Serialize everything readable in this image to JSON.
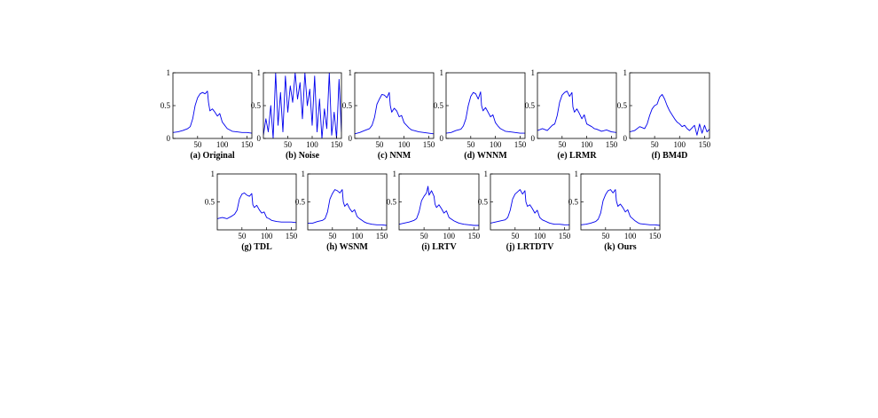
{
  "chart_data": [
    {
      "type": "line",
      "caption": "(a) Original",
      "xlim": [
        0,
        160
      ],
      "ylim": [
        0,
        1
      ],
      "xticks": [
        50,
        100,
        150
      ],
      "yticks": [
        0,
        0.5,
        1
      ],
      "ytick_labels": [
        "0",
        "0.5",
        "1"
      ],
      "series": [
        {
          "x": [
            0,
            10,
            20,
            30,
            35,
            40,
            45,
            50,
            55,
            60,
            65,
            70,
            72,
            75,
            80,
            85,
            90,
            95,
            100,
            105,
            110,
            115,
            120,
            130,
            140,
            150,
            160
          ],
          "y": [
            0.09,
            0.1,
            0.12,
            0.15,
            0.18,
            0.3,
            0.5,
            0.62,
            0.68,
            0.7,
            0.68,
            0.72,
            0.55,
            0.42,
            0.45,
            0.4,
            0.34,
            0.38,
            0.25,
            0.2,
            0.15,
            0.13,
            0.11,
            0.1,
            0.09,
            0.09,
            0.08
          ]
        }
      ]
    },
    {
      "type": "line",
      "caption": "(b) Noise",
      "xlim": [
        0,
        160
      ],
      "ylim": [
        0,
        1
      ],
      "xticks": [
        50,
        100,
        150
      ],
      "yticks": [
        0,
        0.5,
        1
      ],
      "ytick_labels": [
        "0",
        "0.5",
        "1"
      ],
      "series": [
        {
          "x": [
            0,
            5,
            10,
            15,
            20,
            25,
            30,
            35,
            40,
            45,
            50,
            55,
            60,
            65,
            70,
            75,
            80,
            85,
            90,
            95,
            100,
            105,
            110,
            115,
            120,
            125,
            130,
            135,
            140,
            145,
            150,
            155,
            160
          ],
          "y": [
            0.05,
            0.3,
            0.1,
            0.5,
            0.0,
            1.0,
            0.2,
            0.7,
            0.1,
            0.95,
            0.4,
            0.8,
            0.55,
            1.0,
            0.6,
            0.85,
            0.3,
            1.0,
            0.5,
            0.75,
            0.2,
            0.95,
            0.1,
            0.6,
            0.0,
            0.45,
            0.15,
            1.0,
            0.05,
            0.4,
            0.0,
            0.9,
            0.1
          ]
        }
      ]
    },
    {
      "type": "line",
      "caption": "(c) NNM",
      "xlim": [
        0,
        160
      ],
      "ylim": [
        0,
        1
      ],
      "xticks": [
        50,
        100,
        150
      ],
      "yticks": [
        0,
        0.5,
        1
      ],
      "ytick_labels": [
        "0",
        "0.5",
        "1"
      ],
      "series": [
        {
          "x": [
            0,
            10,
            20,
            30,
            35,
            40,
            45,
            50,
            55,
            60,
            65,
            70,
            72,
            75,
            80,
            85,
            90,
            95,
            100,
            105,
            110,
            115,
            120,
            130,
            140,
            150,
            160
          ],
          "y": [
            0.07,
            0.09,
            0.12,
            0.15,
            0.2,
            0.32,
            0.52,
            0.6,
            0.67,
            0.66,
            0.62,
            0.7,
            0.5,
            0.4,
            0.46,
            0.42,
            0.33,
            0.35,
            0.24,
            0.2,
            0.16,
            0.13,
            0.12,
            0.1,
            0.09,
            0.08,
            0.07
          ]
        }
      ]
    },
    {
      "type": "line",
      "caption": "(d) WNNM",
      "xlim": [
        0,
        160
      ],
      "ylim": [
        0,
        1
      ],
      "xticks": [
        50,
        100,
        150
      ],
      "yticks": [
        0,
        0.5,
        1
      ],
      "ytick_labels": [
        "0",
        "0.5",
        "1"
      ],
      "series": [
        {
          "x": [
            0,
            10,
            20,
            30,
            35,
            40,
            45,
            50,
            55,
            60,
            65,
            70,
            72,
            75,
            80,
            85,
            90,
            95,
            100,
            105,
            110,
            115,
            120,
            130,
            140,
            150,
            160
          ],
          "y": [
            0.08,
            0.09,
            0.12,
            0.14,
            0.19,
            0.3,
            0.5,
            0.64,
            0.7,
            0.68,
            0.6,
            0.71,
            0.5,
            0.42,
            0.47,
            0.4,
            0.33,
            0.36,
            0.24,
            0.19,
            0.15,
            0.13,
            0.11,
            0.1,
            0.09,
            0.08,
            0.08
          ]
        }
      ]
    },
    {
      "type": "line",
      "caption": "(e) LRMR",
      "xlim": [
        0,
        160
      ],
      "ylim": [
        0,
        1
      ],
      "xticks": [
        50,
        100,
        150
      ],
      "yticks": [
        0,
        0.5,
        1
      ],
      "ytick_labels": [
        "0",
        "0.5",
        "1"
      ],
      "series": [
        {
          "x": [
            0,
            10,
            20,
            30,
            35,
            40,
            45,
            50,
            55,
            60,
            65,
            70,
            72,
            75,
            80,
            85,
            90,
            95,
            100,
            105,
            110,
            115,
            120,
            130,
            140,
            150,
            160
          ],
          "y": [
            0.12,
            0.15,
            0.12,
            0.2,
            0.22,
            0.35,
            0.55,
            0.66,
            0.7,
            0.72,
            0.64,
            0.7,
            0.48,
            0.4,
            0.45,
            0.38,
            0.3,
            0.36,
            0.22,
            0.2,
            0.18,
            0.15,
            0.14,
            0.11,
            0.13,
            0.1,
            0.09
          ]
        }
      ]
    },
    {
      "type": "line",
      "caption": "(f) BM4D",
      "xlim": [
        0,
        160
      ],
      "ylim": [
        0,
        1
      ],
      "xticks": [
        50,
        100,
        150
      ],
      "yticks": [
        0,
        0.5,
        1
      ],
      "ytick_labels": [
        "0",
        "0.5",
        "1"
      ],
      "series": [
        {
          "x": [
            0,
            10,
            20,
            30,
            35,
            40,
            45,
            50,
            55,
            60,
            65,
            70,
            75,
            80,
            85,
            90,
            95,
            100,
            105,
            110,
            115,
            120,
            130,
            135,
            140,
            145,
            150,
            155,
            160
          ],
          "y": [
            0.1,
            0.12,
            0.18,
            0.15,
            0.22,
            0.35,
            0.45,
            0.5,
            0.52,
            0.63,
            0.67,
            0.6,
            0.5,
            0.42,
            0.36,
            0.3,
            0.25,
            0.22,
            0.18,
            0.2,
            0.15,
            0.12,
            0.2,
            0.05,
            0.22,
            0.08,
            0.2,
            0.1,
            0.14
          ]
        }
      ]
    },
    {
      "type": "line",
      "caption": "(g) TDL",
      "xlim": [
        0,
        160
      ],
      "ylim": [
        0,
        1
      ],
      "xticks": [
        50,
        100,
        150
      ],
      "yticks": [
        0.5,
        1
      ],
      "ytick_labels": [
        "0.5",
        "1"
      ],
      "series": [
        {
          "x": [
            0,
            10,
            20,
            30,
            35,
            40,
            45,
            50,
            55,
            60,
            65,
            70,
            72,
            75,
            80,
            85,
            90,
            95,
            100,
            105,
            110,
            115,
            120,
            130,
            140,
            150,
            160
          ],
          "y": [
            0.2,
            0.22,
            0.2,
            0.25,
            0.28,
            0.35,
            0.55,
            0.64,
            0.66,
            0.62,
            0.6,
            0.65,
            0.45,
            0.4,
            0.44,
            0.36,
            0.3,
            0.32,
            0.22,
            0.2,
            0.17,
            0.16,
            0.15,
            0.14,
            0.14,
            0.14,
            0.13
          ]
        }
      ]
    },
    {
      "type": "line",
      "caption": "(h) WSNM",
      "xlim": [
        0,
        160
      ],
      "ylim": [
        0,
        1
      ],
      "xticks": [
        50,
        100,
        150
      ],
      "yticks": [
        0.5,
        1
      ],
      "ytick_labels": [
        "0.5",
        "1"
      ],
      "series": [
        {
          "x": [
            0,
            10,
            20,
            30,
            35,
            40,
            45,
            50,
            55,
            60,
            65,
            70,
            72,
            75,
            80,
            85,
            90,
            95,
            100,
            105,
            110,
            115,
            120,
            130,
            140,
            150,
            160
          ],
          "y": [
            0.12,
            0.12,
            0.15,
            0.17,
            0.2,
            0.32,
            0.55,
            0.65,
            0.72,
            0.7,
            0.66,
            0.72,
            0.5,
            0.42,
            0.47,
            0.38,
            0.32,
            0.36,
            0.24,
            0.2,
            0.17,
            0.14,
            0.12,
            0.1,
            0.09,
            0.09,
            0.08
          ]
        }
      ]
    },
    {
      "type": "line",
      "caption": "(i) LRTV",
      "xlim": [
        0,
        160
      ],
      "ylim": [
        0,
        1
      ],
      "xticks": [
        50,
        100,
        150
      ],
      "yticks": [
        0.5,
        1
      ],
      "ytick_labels": [
        "0.5",
        "1"
      ],
      "series": [
        {
          "x": [
            0,
            10,
            20,
            30,
            35,
            40,
            45,
            50,
            55,
            58,
            60,
            65,
            70,
            72,
            75,
            80,
            85,
            90,
            95,
            100,
            105,
            110,
            115,
            120,
            130,
            140,
            150,
            160
          ],
          "y": [
            0.1,
            0.12,
            0.14,
            0.17,
            0.2,
            0.32,
            0.52,
            0.6,
            0.66,
            0.78,
            0.62,
            0.7,
            0.6,
            0.46,
            0.4,
            0.45,
            0.38,
            0.3,
            0.34,
            0.22,
            0.19,
            0.16,
            0.14,
            0.12,
            0.1,
            0.09,
            0.08,
            0.08
          ]
        }
      ]
    },
    {
      "type": "line",
      "caption": "(j) LRTDTV",
      "xlim": [
        0,
        160
      ],
      "ylim": [
        0,
        1
      ],
      "xticks": [
        50,
        100,
        150
      ],
      "yticks": [
        0.5,
        1
      ],
      "ytick_labels": [
        "0.5",
        "1"
      ],
      "series": [
        {
          "x": [
            0,
            10,
            20,
            30,
            35,
            40,
            45,
            50,
            55,
            60,
            65,
            70,
            72,
            75,
            80,
            85,
            90,
            95,
            100,
            105,
            110,
            115,
            120,
            130,
            140,
            150,
            160
          ],
          "y": [
            0.12,
            0.14,
            0.16,
            0.18,
            0.22,
            0.35,
            0.55,
            0.64,
            0.68,
            0.72,
            0.64,
            0.7,
            0.5,
            0.42,
            0.45,
            0.38,
            0.3,
            0.35,
            0.22,
            0.18,
            0.16,
            0.14,
            0.12,
            0.1,
            0.1,
            0.09,
            0.09
          ]
        }
      ]
    },
    {
      "type": "line",
      "caption": "(k) Ours",
      "xlim": [
        0,
        160
      ],
      "ylim": [
        0,
        1
      ],
      "xticks": [
        50,
        100,
        150
      ],
      "yticks": [
        0.5,
        1
      ],
      "ytick_labels": [
        "0.5",
        "1"
      ],
      "series": [
        {
          "x": [
            0,
            10,
            20,
            30,
            35,
            40,
            45,
            50,
            55,
            60,
            65,
            70,
            72,
            75,
            80,
            85,
            90,
            95,
            100,
            105,
            110,
            115,
            120,
            130,
            140,
            150,
            160
          ],
          "y": [
            0.09,
            0.1,
            0.12,
            0.15,
            0.19,
            0.3,
            0.52,
            0.63,
            0.7,
            0.72,
            0.66,
            0.72,
            0.52,
            0.42,
            0.46,
            0.4,
            0.32,
            0.36,
            0.24,
            0.2,
            0.16,
            0.13,
            0.11,
            0.1,
            0.09,
            0.09,
            0.08
          ]
        }
      ]
    }
  ]
}
